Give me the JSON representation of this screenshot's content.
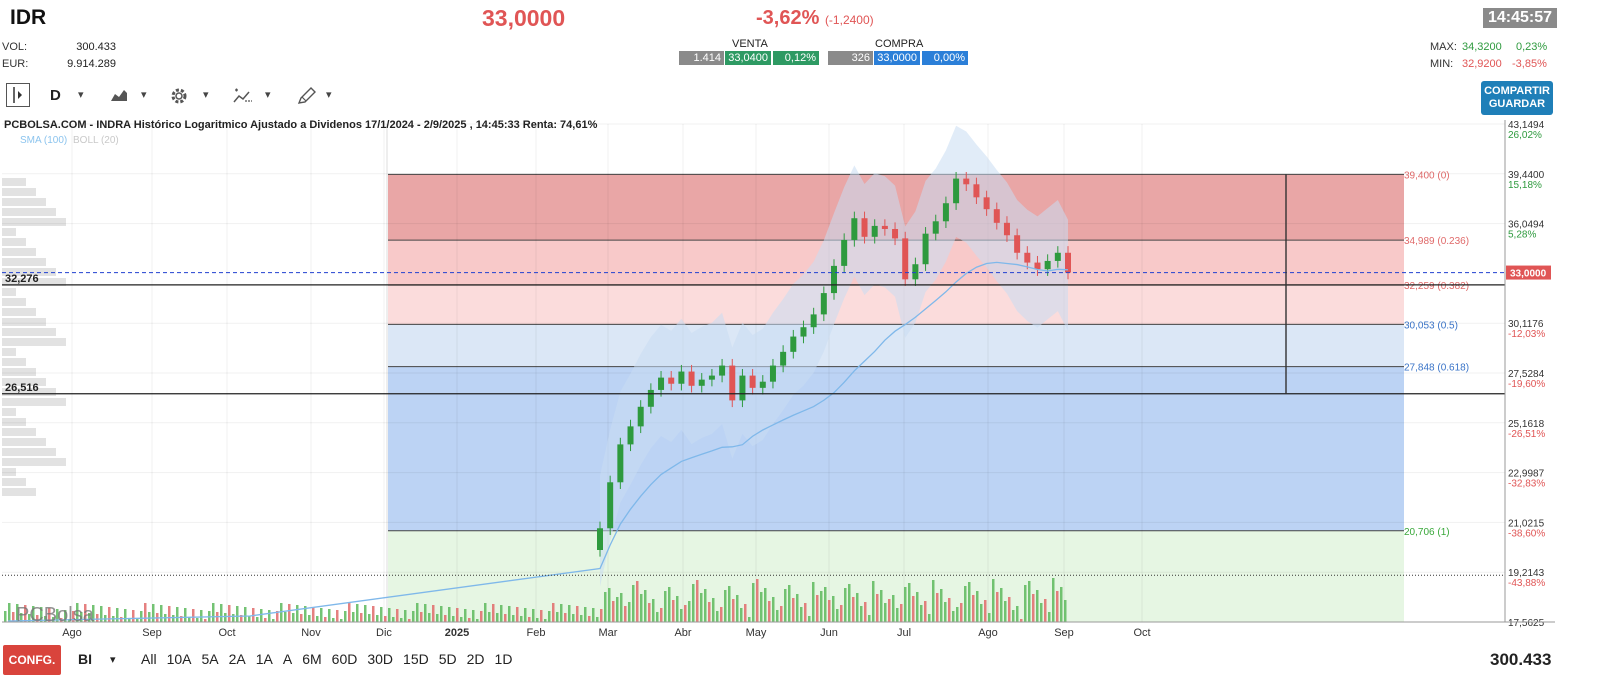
{
  "header": {
    "ticker": "IDR",
    "price": "33,0000",
    "change_pct": "-3,62%",
    "change_abs": "(-1,2400)",
    "time": "14:45:57",
    "vol_label": "VOL:",
    "vol_value": "300.433",
    "eur_label": "EUR:",
    "eur_value": "9.914.289",
    "venta_label": "VENTA",
    "venta_qty": "1.414",
    "venta_price": "33,0400",
    "venta_pct": "0,12%",
    "compra_label": "COMPRA",
    "compra_qty": "326",
    "compra_price": "33,0000",
    "compra_pct": "0,00%",
    "max_label": "MAX:",
    "max_value": "34,3200",
    "max_pct": "0,23%",
    "min_label": "MIN:",
    "min_value": "32,9200",
    "min_pct": "-3,85%"
  },
  "toolbar": {
    "period": "D",
    "share_line1": "COMPARTIR",
    "share_line2": "GUARDAR"
  },
  "chart_data": {
    "type": "candlestick",
    "title": "PCBOLSA.COM - INDRA Histórico Logaritmico Ajustado a Dividenos 17/1/2024 - 2/9/2025 , 14:45:33 Renta: 74,61%",
    "legend": [
      "SMA (100)",
      "BOLL (20)"
    ],
    "x_labels": [
      "Ago",
      "Sep",
      "Oct",
      "Nov",
      "Dic",
      "2025",
      "Feb",
      "Mar",
      "Abr",
      "May",
      "Jun",
      "Jul",
      "Ago",
      "Sep",
      "Oct"
    ],
    "y_scale": "log",
    "y_ticks": [
      {
        "price": "43,1494",
        "pct": "26,02%"
      },
      {
        "price": "39,4400",
        "pct": "15,18%"
      },
      {
        "price": "36,0494",
        "pct": "5,28%"
      },
      {
        "price": "30,1176",
        "pct": "-12,03%"
      },
      {
        "price": "27,5284",
        "pct": "-19,60%"
      },
      {
        "price": "25,1618",
        "pct": "-26,51%"
      },
      {
        "price": "22,9987",
        "pct": "-32,83%"
      },
      {
        "price": "21,0215",
        "pct": "-38,60%"
      },
      {
        "price": "19,2143",
        "pct": "-43,88%"
      },
      {
        "price": "17,5625",
        "pct": ""
      }
    ],
    "last_price": "33,0000",
    "fibonacci": [
      {
        "label": "39,400 (0)",
        "color": "#e06a6a"
      },
      {
        "label": "34,989 (0.236)",
        "color": "#e06a6a"
      },
      {
        "label": "32,259 (0.382)",
        "color": "#e06a6a"
      },
      {
        "label": "30,053 (0.5)",
        "color": "#3a74c8"
      },
      {
        "label": "27,848 (0.618)",
        "color": "#3a74c8"
      },
      {
        "label": "20,706 (1)",
        "color": "#39a83a"
      }
    ],
    "h_levels": [
      "32,276",
      "26,516"
    ],
    "watermark": "PCBolsa",
    "closes": [
      20.8,
      22.6,
      24.2,
      25.0,
      25.9,
      26.7,
      27.3,
      27.0,
      27.6,
      26.9,
      27.2,
      27.4,
      27.9,
      26.2,
      27.4,
      26.8,
      27.1,
      27.9,
      28.6,
      29.4,
      29.9,
      30.6,
      31.8,
      33.4,
      35.0,
      36.4,
      35.2,
      35.9,
      35.7,
      35.1,
      32.6,
      33.5,
      35.4,
      36.2,
      37.4,
      39.1,
      38.7,
      37.8,
      37.0,
      36.1,
      35.3,
      34.2,
      33.6,
      33.2,
      33.7,
      34.2,
      33.0
    ],
    "colors": {
      "up": "#2e9a3e",
      "down": "#e05555",
      "sma": "#7fb8ea",
      "boll": "#c8dcf3"
    }
  },
  "footer": {
    "confg": "CONFG.",
    "mode": "BI",
    "ranges": [
      "All",
      "10A",
      "5A",
      "2A",
      "1A",
      "A",
      "6M",
      "60D",
      "30D",
      "15D",
      "5D",
      "2D",
      "1D"
    ],
    "volume": "300.433"
  }
}
